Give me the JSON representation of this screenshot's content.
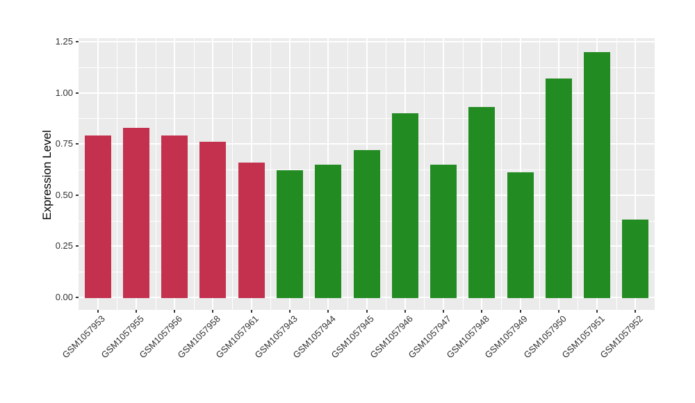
{
  "chart_data": {
    "type": "bar",
    "title": "",
    "xlabel": "",
    "ylabel": "Expression Level",
    "ylim": [
      0,
      1.25
    ],
    "grid": "on",
    "legend": "none",
    "ytick_values": [
      0,
      0.25,
      0.5,
      0.75,
      1.0,
      1.25
    ],
    "ytick_labels": [
      "0.00",
      "0.25",
      "0.50",
      "0.75",
      "1.00",
      "1.25"
    ],
    "minor_ytick_values": [
      0.125,
      0.375,
      0.625,
      0.875,
      1.125
    ],
    "categories": [
      "GSM1057953",
      "GSM1057955",
      "GSM1057956",
      "GSM1057958",
      "GSM1057961",
      "GSM1057943",
      "GSM1057944",
      "GSM1057945",
      "GSM1057946",
      "GSM1057947",
      "GSM1057948",
      "GSM1057949",
      "GSM1057950",
      "GSM1057951",
      "GSM1057952"
    ],
    "values": [
      0.79,
      0.83,
      0.79,
      0.76,
      0.66,
      0.62,
      0.65,
      0.72,
      0.9,
      0.65,
      0.93,
      0.61,
      1.07,
      1.2,
      0.38
    ],
    "groups": [
      "red",
      "red",
      "red",
      "red",
      "red",
      "green",
      "green",
      "green",
      "green",
      "green",
      "green",
      "green",
      "green",
      "green",
      "green"
    ],
    "colors": {
      "red": "#C3314F",
      "green": "#228B22",
      "panel_background": "#EBEBEB",
      "gridline": "#FFFFFF",
      "tick": "#333333",
      "tick_label": "#303030"
    }
  }
}
